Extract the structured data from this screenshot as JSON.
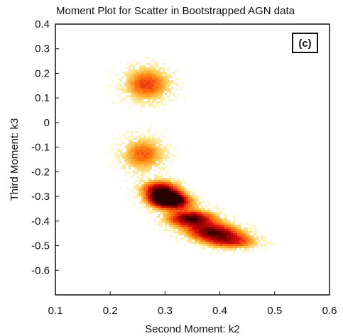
{
  "chart_data": {
    "type": "heatmap",
    "title": "Moment Plot for Scatter in Bootstrapped AGN data",
    "xlabel": "Second Moment: k2",
    "ylabel": "Third Moment: k3",
    "panel_label": "(c)",
    "xlim": [
      0.1,
      0.6
    ],
    "ylim": [
      -0.7,
      0.4
    ],
    "x_ticks": [
      0.1,
      0.2,
      0.3,
      0.4,
      0.5,
      0.6
    ],
    "x_tick_labels": [
      "0.1",
      "0.2",
      "0.3",
      "0.4",
      "0.5",
      "0.6"
    ],
    "y_ticks": [
      0.4,
      0.3,
      0.2,
      0.1,
      0,
      -0.1,
      -0.2,
      -0.3,
      -0.4,
      -0.5,
      -0.6
    ],
    "y_tick_labels": [
      "0.4",
      "0.3",
      "0.2",
      "0.1",
      "0",
      "-0.1",
      "-0.2",
      "-0.3",
      "-0.4",
      "-0.5",
      "-0.6"
    ],
    "grid": false,
    "colormap": [
      "#fff6c8",
      "#ffe066",
      "#ffb020",
      "#ff6a10",
      "#e01010",
      "#8a0000",
      "#2a0000"
    ],
    "clusters": [
      {
        "x": 0.265,
        "y": 0.16,
        "sx": 0.03,
        "sy": 0.05,
        "peak": 0.62
      },
      {
        "x": 0.258,
        "y": -0.125,
        "sx": 0.028,
        "sy": 0.05,
        "peak": 0.55
      },
      {
        "x": 0.29,
        "y": -0.265,
        "sx": 0.025,
        "sy": 0.025,
        "peak": 0.85
      },
      {
        "x": 0.31,
        "y": -0.32,
        "sx": 0.028,
        "sy": 0.022,
        "peak": 0.88
      },
      {
        "x": 0.345,
        "y": -0.385,
        "sx": 0.032,
        "sy": 0.024,
        "peak": 0.97
      },
      {
        "x": 0.385,
        "y": -0.44,
        "sx": 0.035,
        "sy": 0.025,
        "peak": 0.9
      },
      {
        "x": 0.42,
        "y": -0.48,
        "sx": 0.035,
        "sy": 0.022,
        "peak": 0.62
      },
      {
        "x": 0.3,
        "y": -0.3,
        "sx": 0.022,
        "sy": 0.02,
        "peak": 0.8
      }
    ]
  }
}
